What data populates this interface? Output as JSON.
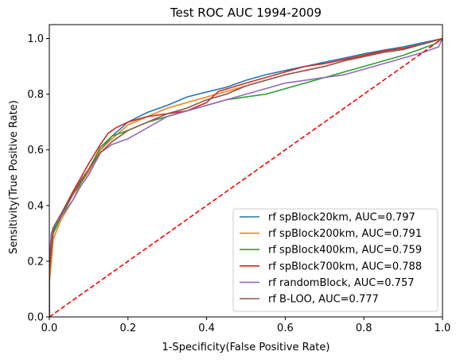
{
  "chart_data": {
    "type": "line",
    "title": "Test ROC AUC 1994-2009",
    "xlabel": "1-Specificity(False Positive Rate)",
    "ylabel": "Sensitivity(True Positive Rate)",
    "xlim": [
      0.0,
      1.0
    ],
    "ylim": [
      0.0,
      1.05
    ],
    "x_ticks": [
      "0.0",
      "0.2",
      "0.4",
      "0.6",
      "0.8",
      "1.0"
    ],
    "y_ticks": [
      "0.0",
      "0.2",
      "0.4",
      "0.6",
      "0.8",
      "1.0"
    ],
    "legend_position": "bottom-right",
    "grid": false,
    "series": [
      {
        "name": "rf spBlock20km, AUC=0.797",
        "color": "#1f77b4",
        "points": [
          [
            0,
            0
          ],
          [
            0,
            0.15
          ],
          [
            0.005,
            0.25
          ],
          [
            0.01,
            0.31
          ],
          [
            0.03,
            0.36
          ],
          [
            0.06,
            0.44
          ],
          [
            0.08,
            0.49
          ],
          [
            0.1,
            0.53
          ],
          [
            0.13,
            0.6
          ],
          [
            0.16,
            0.65
          ],
          [
            0.2,
            0.7
          ],
          [
            0.25,
            0.735
          ],
          [
            0.3,
            0.76
          ],
          [
            0.35,
            0.79
          ],
          [
            0.4,
            0.808
          ],
          [
            0.45,
            0.825
          ],
          [
            0.5,
            0.85
          ],
          [
            0.55,
            0.87
          ],
          [
            0.6,
            0.885
          ],
          [
            0.65,
            0.9
          ],
          [
            0.7,
            0.915
          ],
          [
            0.75,
            0.93
          ],
          [
            0.8,
            0.945
          ],
          [
            0.85,
            0.958
          ],
          [
            0.9,
            0.97
          ],
          [
            0.95,
            0.985
          ],
          [
            1,
            1
          ]
        ]
      },
      {
        "name": "rf spBlock200km, AUC=0.791",
        "color": "#ff7f0e",
        "points": [
          [
            0,
            0
          ],
          [
            0,
            0.12
          ],
          [
            0.005,
            0.2
          ],
          [
            0.01,
            0.28
          ],
          [
            0.03,
            0.35
          ],
          [
            0.06,
            0.42
          ],
          [
            0.08,
            0.48
          ],
          [
            0.1,
            0.52
          ],
          [
            0.13,
            0.6
          ],
          [
            0.16,
            0.64
          ],
          [
            0.2,
            0.69
          ],
          [
            0.25,
            0.72
          ],
          [
            0.3,
            0.75
          ],
          [
            0.35,
            0.77
          ],
          [
            0.4,
            0.79
          ],
          [
            0.45,
            0.81
          ],
          [
            0.5,
            0.83
          ],
          [
            0.55,
            0.85
          ],
          [
            0.6,
            0.87
          ],
          [
            0.65,
            0.885
          ],
          [
            0.7,
            0.9
          ],
          [
            0.75,
            0.92
          ],
          [
            0.8,
            0.94
          ],
          [
            0.85,
            0.955
          ],
          [
            0.9,
            0.965
          ],
          [
            0.95,
            0.98
          ],
          [
            1,
            1
          ]
        ]
      },
      {
        "name": "rf spBlock400km, AUC=0.759",
        "color": "#2ca02c",
        "points": [
          [
            0,
            0
          ],
          [
            0,
            0.18
          ],
          [
            0.005,
            0.25
          ],
          [
            0.01,
            0.3
          ],
          [
            0.03,
            0.36
          ],
          [
            0.06,
            0.44
          ],
          [
            0.08,
            0.48
          ],
          [
            0.1,
            0.53
          ],
          [
            0.13,
            0.61
          ],
          [
            0.16,
            0.65
          ],
          [
            0.2,
            0.67
          ],
          [
            0.25,
            0.7
          ],
          [
            0.3,
            0.72
          ],
          [
            0.35,
            0.74
          ],
          [
            0.4,
            0.76
          ],
          [
            0.45,
            0.78
          ],
          [
            0.5,
            0.79
          ],
          [
            0.55,
            0.8
          ],
          [
            0.6,
            0.82
          ],
          [
            0.65,
            0.84
          ],
          [
            0.7,
            0.86
          ],
          [
            0.75,
            0.88
          ],
          [
            0.8,
            0.9
          ],
          [
            0.85,
            0.92
          ],
          [
            0.9,
            0.94
          ],
          [
            0.95,
            0.965
          ],
          [
            0.98,
            0.98
          ],
          [
            1,
            1
          ]
        ]
      },
      {
        "name": "rf spBlock700km, AUC=0.788",
        "color": "#d62728",
        "points": [
          [
            0,
            0
          ],
          [
            0,
            0.16
          ],
          [
            0.005,
            0.24
          ],
          [
            0.01,
            0.32
          ],
          [
            0.03,
            0.37
          ],
          [
            0.06,
            0.45
          ],
          [
            0.08,
            0.5
          ],
          [
            0.1,
            0.55
          ],
          [
            0.13,
            0.62
          ],
          [
            0.15,
            0.66
          ],
          [
            0.17,
            0.68
          ],
          [
            0.2,
            0.7
          ],
          [
            0.25,
            0.72
          ],
          [
            0.3,
            0.73
          ],
          [
            0.35,
            0.74
          ],
          [
            0.4,
            0.77
          ],
          [
            0.43,
            0.81
          ],
          [
            0.5,
            0.84
          ],
          [
            0.55,
            0.86
          ],
          [
            0.6,
            0.88
          ],
          [
            0.65,
            0.9
          ],
          [
            0.7,
            0.91
          ],
          [
            0.75,
            0.925
          ],
          [
            0.8,
            0.94
          ],
          [
            0.85,
            0.955
          ],
          [
            0.9,
            0.965
          ],
          [
            0.95,
            0.98
          ],
          [
            1,
            1
          ]
        ]
      },
      {
        "name": "rf randomBlock, AUC=0.757",
        "color": "#9467bd",
        "points": [
          [
            0,
            0
          ],
          [
            0,
            0.2
          ],
          [
            0.005,
            0.3
          ],
          [
            0.01,
            0.32
          ],
          [
            0.03,
            0.36
          ],
          [
            0.06,
            0.42
          ],
          [
            0.08,
            0.47
          ],
          [
            0.1,
            0.51
          ],
          [
            0.13,
            0.59
          ],
          [
            0.16,
            0.62
          ],
          [
            0.2,
            0.64
          ],
          [
            0.25,
            0.68
          ],
          [
            0.3,
            0.72
          ],
          [
            0.35,
            0.74
          ],
          [
            0.4,
            0.76
          ],
          [
            0.45,
            0.78
          ],
          [
            0.5,
            0.8
          ],
          [
            0.55,
            0.82
          ],
          [
            0.6,
            0.84
          ],
          [
            0.65,
            0.85
          ],
          [
            0.7,
            0.86
          ],
          [
            0.75,
            0.87
          ],
          [
            0.8,
            0.89
          ],
          [
            0.85,
            0.91
          ],
          [
            0.9,
            0.93
          ],
          [
            0.95,
            0.95
          ],
          [
            0.99,
            0.97
          ],
          [
            1,
            1
          ]
        ]
      },
      {
        "name": "rf B-LOO, AUC=0.777",
        "color": "#8c564b",
        "points": [
          [
            0,
            0
          ],
          [
            0,
            0.17
          ],
          [
            0.005,
            0.26
          ],
          [
            0.01,
            0.32
          ],
          [
            0.03,
            0.37
          ],
          [
            0.06,
            0.44
          ],
          [
            0.08,
            0.49
          ],
          [
            0.1,
            0.53
          ],
          [
            0.13,
            0.59
          ],
          [
            0.16,
            0.63
          ],
          [
            0.2,
            0.67
          ],
          [
            0.25,
            0.7
          ],
          [
            0.3,
            0.73
          ],
          [
            0.35,
            0.75
          ],
          [
            0.4,
            0.78
          ],
          [
            0.45,
            0.8
          ],
          [
            0.5,
            0.83
          ],
          [
            0.55,
            0.85
          ],
          [
            0.6,
            0.87
          ],
          [
            0.65,
            0.885
          ],
          [
            0.7,
            0.9
          ],
          [
            0.75,
            0.92
          ],
          [
            0.8,
            0.935
          ],
          [
            0.85,
            0.95
          ],
          [
            0.9,
            0.96
          ],
          [
            0.95,
            0.98
          ],
          [
            1,
            1
          ]
        ]
      }
    ],
    "reference_line": {
      "color": "#ff0000",
      "style": "dashed",
      "points": [
        [
          0,
          0
        ],
        [
          1,
          1
        ]
      ]
    }
  }
}
